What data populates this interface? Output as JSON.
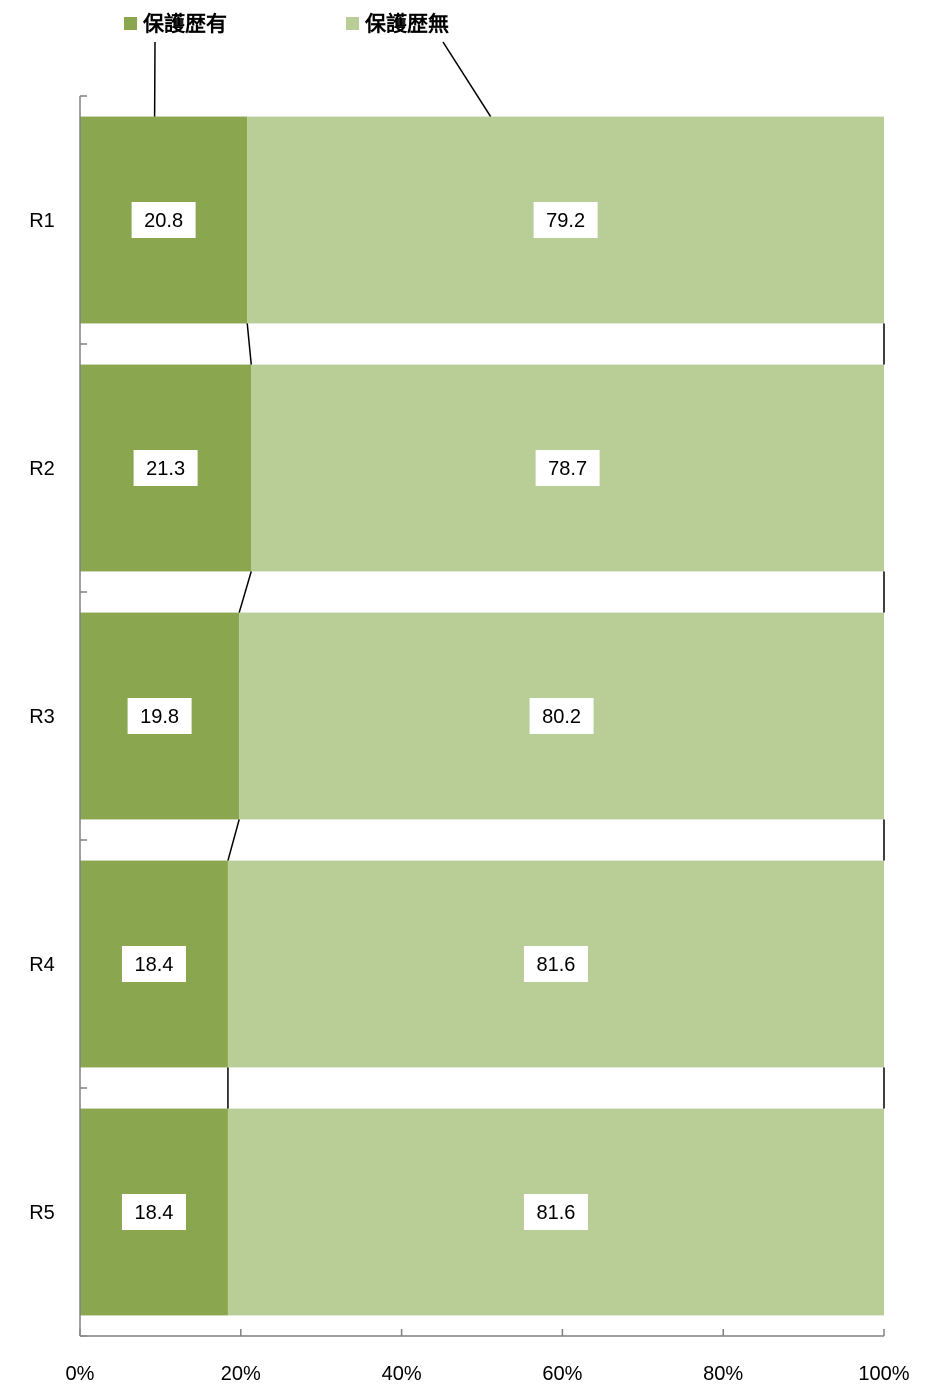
{
  "chart_data": {
    "type": "bar",
    "orientation": "horizontal",
    "stacked": true,
    "percent_stacked": true,
    "categories": [
      "R1",
      "R2",
      "R3",
      "R4",
      "R5"
    ],
    "series": [
      {
        "name": "保護歴有",
        "values": [
          20.8,
          21.3,
          19.8,
          18.4,
          18.4
        ],
        "color": "#8aa64e"
      },
      {
        "name": "保護歴無",
        "values": [
          79.2,
          78.7,
          80.2,
          81.6,
          81.6
        ],
        "color": "#b9ce97"
      }
    ],
    "xlim": [
      0,
      100
    ],
    "x_ticks": [
      "0%",
      "20%",
      "40%",
      "60%",
      "80%",
      "100%"
    ],
    "legend_position": "top-left",
    "series_lines": true,
    "grid": false
  }
}
